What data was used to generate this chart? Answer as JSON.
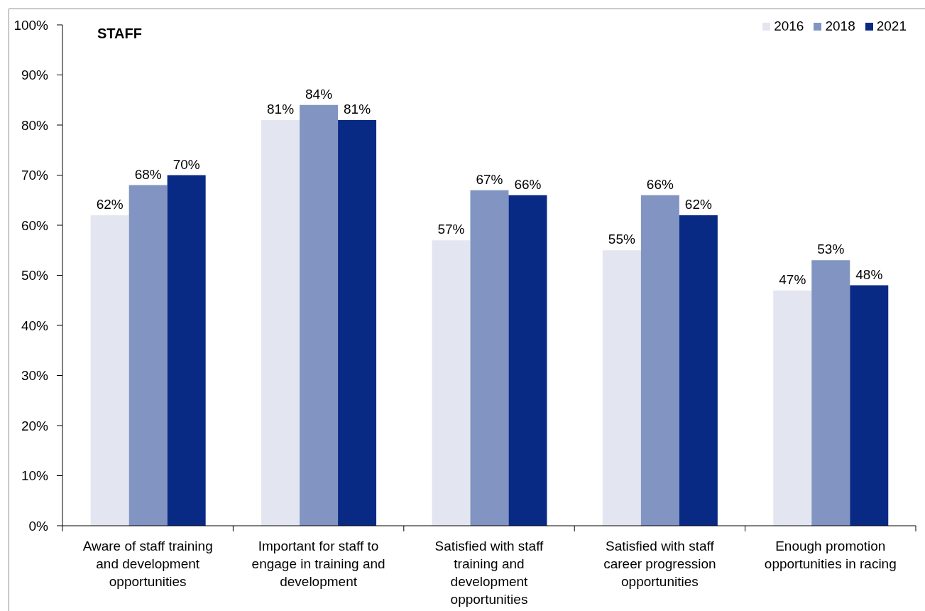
{
  "chart_data": {
    "type": "bar",
    "title": "STAFF",
    "categories": [
      "Aware of staff training and development opportunities",
      "Important for staff to engage in training and development",
      "Satisfied with staff training and development opportunities",
      "Satisfied with staff career progression opportunities",
      "Enough promotion opportunities in racing"
    ],
    "series": [
      {
        "name": "2016",
        "color": "#e3e6f0",
        "values": [
          62,
          81,
          57,
          55,
          47
        ],
        "value_labels": [
          "62%",
          "81%",
          "57%",
          "55%",
          "47%"
        ]
      },
      {
        "name": "2018",
        "color": "#8294c1",
        "values": [
          68,
          84,
          67,
          66,
          53
        ],
        "value_labels": [
          "68%",
          "84%",
          "67%",
          "66%",
          "53%"
        ]
      },
      {
        "name": "2021",
        "color": "#092a84",
        "values": [
          70,
          81,
          66,
          62,
          48
        ],
        "value_labels": [
          "70%",
          "81%",
          "66%",
          "62%",
          "48%"
        ]
      }
    ],
    "ylim": [
      0,
      100
    ],
    "yticks": [
      {
        "value": 0,
        "label": "0%"
      },
      {
        "value": 10,
        "label": "10%"
      },
      {
        "value": 20,
        "label": "20%"
      },
      {
        "value": 30,
        "label": "30%"
      },
      {
        "value": 40,
        "label": "40%"
      },
      {
        "value": 50,
        "label": "50%"
      },
      {
        "value": 60,
        "label": "60%"
      },
      {
        "value": 70,
        "label": "70%"
      },
      {
        "value": 80,
        "label": "80%"
      },
      {
        "value": 90,
        "label": "90%"
      },
      {
        "value": 100,
        "label": "100%"
      }
    ],
    "legend": "top right"
  }
}
